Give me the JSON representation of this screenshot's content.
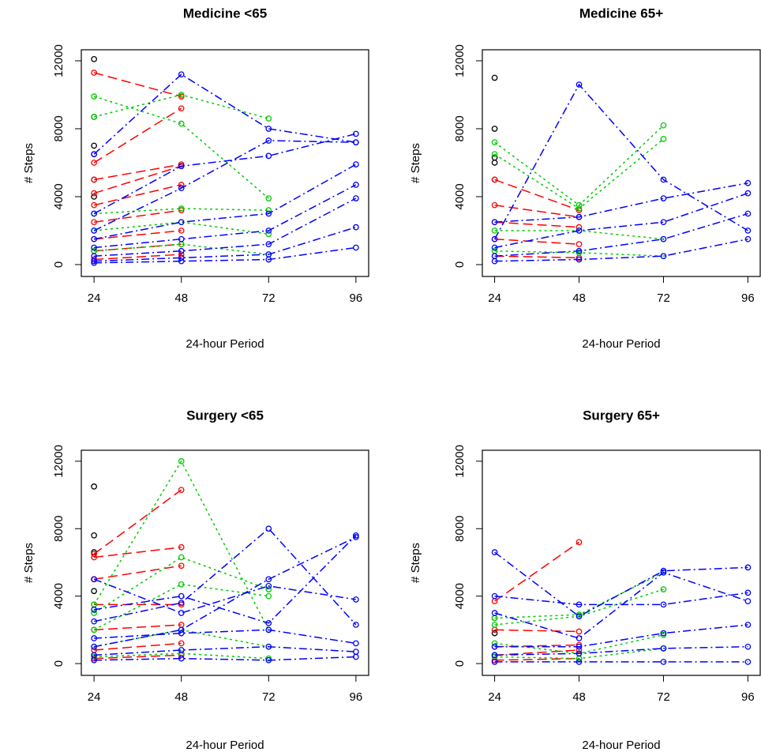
{
  "chart_data": [
    {
      "type": "line",
      "title": "Medicine <65",
      "x_label": "24-hour Period",
      "y_label": "# Steps",
      "xlim": [
        20.5,
        99.5
      ],
      "ylim": [
        -700,
        12650
      ],
      "xticks": [
        24,
        48,
        72,
        96
      ],
      "yticks": [
        0,
        4000,
        8000,
        12000
      ],
      "series": [
        {
          "color": "#000000",
          "x": [
            24
          ],
          "values": [
            12100
          ]
        },
        {
          "color": "#000000",
          "x": [
            24
          ],
          "values": [
            8700
          ]
        },
        {
          "color": "#000000",
          "x": [
            24
          ],
          "values": [
            7000
          ]
        },
        {
          "color": "#000000",
          "x": [
            24
          ],
          "values": [
            6500
          ]
        },
        {
          "color": "#000000",
          "x": [
            24
          ],
          "values": [
            5000
          ]
        },
        {
          "color": "#000000",
          "x": [
            24
          ],
          "values": [
            4000
          ]
        },
        {
          "color": "#ff0000",
          "x": [
            24,
            48
          ],
          "values": [
            11300,
            9900
          ]
        },
        {
          "color": "#ff0000",
          "x": [
            24,
            48
          ],
          "values": [
            6000,
            9200
          ]
        },
        {
          "color": "#ff0000",
          "x": [
            24,
            48
          ],
          "values": [
            5000,
            5900
          ]
        },
        {
          "color": "#ff0000",
          "x": [
            24,
            48
          ],
          "values": [
            4200,
            5800
          ]
        },
        {
          "color": "#ff0000",
          "x": [
            24,
            48
          ],
          "values": [
            3500,
            4700
          ]
        },
        {
          "color": "#ff0000",
          "x": [
            24,
            48
          ],
          "values": [
            2500,
            3200
          ]
        },
        {
          "color": "#ff0000",
          "x": [
            24,
            48
          ],
          "values": [
            1500,
            2000
          ]
        },
        {
          "color": "#ff0000",
          "x": [
            24,
            48
          ],
          "values": [
            800,
            1200
          ]
        },
        {
          "color": "#ff0000",
          "x": [
            24,
            48
          ],
          "values": [
            300,
            600
          ]
        },
        {
          "color": "#00cc00",
          "x": [
            24,
            48,
            72
          ],
          "values": [
            9900,
            8300,
            3900
          ]
        },
        {
          "color": "#00cc00",
          "x": [
            24,
            48,
            72
          ],
          "values": [
            8700,
            10000,
            8600
          ]
        },
        {
          "color": "#00cc00",
          "x": [
            24,
            48,
            72
          ],
          "values": [
            3000,
            3300,
            3200
          ]
        },
        {
          "color": "#00cc00",
          "x": [
            24,
            48,
            72
          ],
          "values": [
            2000,
            2500,
            1800
          ]
        },
        {
          "color": "#00cc00",
          "x": [
            24,
            48,
            72
          ],
          "values": [
            800,
            1200,
            600
          ]
        },
        {
          "color": "#0000ff",
          "x": [
            24,
            48,
            72,
            96
          ],
          "values": [
            6500,
            11200,
            8000,
            7200
          ]
        },
        {
          "color": "#0000ff",
          "x": [
            24,
            48,
            72,
            96
          ],
          "values": [
            3000,
            5800,
            6400,
            7700
          ]
        },
        {
          "color": "#0000ff",
          "x": [
            24,
            48,
            72,
            96
          ],
          "values": [
            2000,
            4500,
            7300,
            7200
          ]
        },
        {
          "color": "#0000ff",
          "x": [
            24,
            48,
            72,
            96
          ],
          "values": [
            1500,
            2500,
            3000,
            5900
          ]
        },
        {
          "color": "#0000ff",
          "x": [
            24,
            48,
            72,
            96
          ],
          "values": [
            1000,
            1500,
            2000,
            4700
          ]
        },
        {
          "color": "#0000ff",
          "x": [
            24,
            48,
            72,
            96
          ],
          "values": [
            500,
            800,
            1200,
            3900
          ]
        },
        {
          "color": "#0000ff",
          "x": [
            24,
            48,
            72,
            96
          ],
          "values": [
            200,
            400,
            600,
            2200
          ]
        },
        {
          "color": "#0000ff",
          "x": [
            24,
            48,
            72,
            96
          ],
          "values": [
            100,
            200,
            300,
            1000
          ]
        }
      ]
    },
    {
      "type": "line",
      "title": "Medicine 65+",
      "x_label": "24-hour Period",
      "y_label": "# Steps",
      "xlim": [
        20.5,
        99.5
      ],
      "ylim": [
        -700,
        12650
      ],
      "xticks": [
        24,
        48,
        72,
        96
      ],
      "yticks": [
        0,
        4000,
        8000,
        12000
      ],
      "series": [
        {
          "color": "#000000",
          "x": [
            24
          ],
          "values": [
            11000
          ]
        },
        {
          "color": "#000000",
          "x": [
            24
          ],
          "values": [
            8000
          ]
        },
        {
          "color": "#000000",
          "x": [
            24
          ],
          "values": [
            6300
          ]
        },
        {
          "color": "#000000",
          "x": [
            24
          ],
          "values": [
            6000
          ]
        },
        {
          "color": "#000000",
          "x": [
            24
          ],
          "values": [
            5000
          ]
        },
        {
          "color": "#ff0000",
          "x": [
            24,
            48
          ],
          "values": [
            5000,
            3200
          ]
        },
        {
          "color": "#ff0000",
          "x": [
            24,
            48
          ],
          "values": [
            3500,
            2800
          ]
        },
        {
          "color": "#ff0000",
          "x": [
            24,
            48
          ],
          "values": [
            2500,
            2200
          ]
        },
        {
          "color": "#ff0000",
          "x": [
            24,
            48
          ],
          "values": [
            1500,
            1200
          ]
        },
        {
          "color": "#ff0000",
          "x": [
            24,
            48
          ],
          "values": [
            500,
            400
          ]
        },
        {
          "color": "#00cc00",
          "x": [
            24,
            48,
            72
          ],
          "values": [
            7200,
            3500,
            8200
          ]
        },
        {
          "color": "#00cc00",
          "x": [
            24,
            48,
            72
          ],
          "values": [
            6500,
            3300,
            7400
          ]
        },
        {
          "color": "#00cc00",
          "x": [
            24,
            48,
            72
          ],
          "values": [
            2000,
            2000,
            1500
          ]
        },
        {
          "color": "#00cc00",
          "x": [
            24,
            48,
            72
          ],
          "values": [
            800,
            700,
            500
          ]
        },
        {
          "color": "#0000ff",
          "x": [
            24,
            48,
            72,
            96
          ],
          "values": [
            1500,
            10600,
            5000,
            2000
          ]
        },
        {
          "color": "#0000ff",
          "x": [
            24,
            48,
            72,
            96
          ],
          "values": [
            2500,
            2800,
            3900,
            4800
          ]
        },
        {
          "color": "#0000ff",
          "x": [
            24,
            48,
            72,
            96
          ],
          "values": [
            1000,
            2000,
            2500,
            4200
          ]
        },
        {
          "color": "#0000ff",
          "x": [
            24,
            48,
            72,
            96
          ],
          "values": [
            500,
            800,
            1500,
            3000
          ]
        },
        {
          "color": "#0000ff",
          "x": [
            24,
            48,
            72,
            96
          ],
          "values": [
            200,
            300,
            500,
            1500
          ]
        }
      ]
    },
    {
      "type": "line",
      "title": "Surgery <65",
      "x_label": "24-hour Period",
      "y_label": "# Steps",
      "xlim": [
        20.5,
        99.5
      ],
      "ylim": [
        -700,
        12650
      ],
      "xticks": [
        24,
        48,
        72,
        96
      ],
      "yticks": [
        0,
        4000,
        8000,
        12000
      ],
      "series": [
        {
          "color": "#000000",
          "x": [
            24
          ],
          "values": [
            10500
          ]
        },
        {
          "color": "#000000",
          "x": [
            24
          ],
          "values": [
            7600
          ]
        },
        {
          "color": "#000000",
          "x": [
            24
          ],
          "values": [
            6600
          ]
        },
        {
          "color": "#000000",
          "x": [
            24
          ],
          "values": [
            5000
          ]
        },
        {
          "color": "#000000",
          "x": [
            24
          ],
          "values": [
            4300
          ]
        },
        {
          "color": "#ff0000",
          "x": [
            24,
            48
          ],
          "values": [
            6500,
            10300
          ]
        },
        {
          "color": "#ff0000",
          "x": [
            24,
            48
          ],
          "values": [
            6300,
            6900
          ]
        },
        {
          "color": "#ff0000",
          "x": [
            24,
            48
          ],
          "values": [
            5000,
            5800
          ]
        },
        {
          "color": "#ff0000",
          "x": [
            24,
            48
          ],
          "values": [
            3500,
            3500
          ]
        },
        {
          "color": "#ff0000",
          "x": [
            24,
            48
          ],
          "values": [
            2000,
            2300
          ]
        },
        {
          "color": "#ff0000",
          "x": [
            24,
            48
          ],
          "values": [
            800,
            1200
          ]
        },
        {
          "color": "#ff0000",
          "x": [
            24,
            48
          ],
          "values": [
            300,
            500
          ]
        },
        {
          "color": "#00cc00",
          "x": [
            24,
            48,
            72
          ],
          "values": [
            3500,
            12000,
            2000
          ]
        },
        {
          "color": "#00cc00",
          "x": [
            24,
            48,
            72
          ],
          "values": [
            3000,
            6300,
            4400
          ]
        },
        {
          "color": "#00cc00",
          "x": [
            24,
            48,
            72
          ],
          "values": [
            2000,
            4700,
            4000
          ]
        },
        {
          "color": "#00cc00",
          "x": [
            24,
            48,
            72
          ],
          "values": [
            1000,
            2000,
            1000
          ]
        },
        {
          "color": "#00cc00",
          "x": [
            24,
            48,
            72
          ],
          "values": [
            400,
            600,
            300
          ]
        },
        {
          "color": "#0000ff",
          "x": [
            24,
            48,
            72,
            96
          ],
          "values": [
            2500,
            3600,
            8000,
            2300
          ]
        },
        {
          "color": "#0000ff",
          "x": [
            24,
            48,
            72,
            96
          ],
          "values": [
            5000,
            3000,
            4600,
            3800
          ]
        },
        {
          "color": "#0000ff",
          "x": [
            24,
            48,
            72,
            96
          ],
          "values": [
            3200,
            4000,
            2400,
            7600
          ]
        },
        {
          "color": "#0000ff",
          "x": [
            24,
            48,
            72,
            96
          ],
          "values": [
            1000,
            2000,
            5000,
            7500
          ]
        },
        {
          "color": "#0000ff",
          "x": [
            24,
            48,
            72,
            96
          ],
          "values": [
            1500,
            1800,
            2000,
            1200
          ]
        },
        {
          "color": "#0000ff",
          "x": [
            24,
            48,
            72,
            96
          ],
          "values": [
            500,
            800,
            1000,
            700
          ]
        },
        {
          "color": "#0000ff",
          "x": [
            24,
            48,
            72,
            96
          ],
          "values": [
            200,
            300,
            200,
            400
          ]
        }
      ]
    },
    {
      "type": "line",
      "title": "Surgery 65+",
      "x_label": "24-hour Period",
      "y_label": "# Steps",
      "xlim": [
        20.5,
        99.5
      ],
      "ylim": [
        -700,
        12650
      ],
      "xticks": [
        24,
        48,
        72,
        96
      ],
      "yticks": [
        0,
        4000,
        8000,
        12000
      ],
      "series": [
        {
          "color": "#000000",
          "x": [
            24
          ],
          "values": [
            2700
          ]
        },
        {
          "color": "#000000",
          "x": [
            24
          ],
          "values": [
            1800
          ]
        },
        {
          "color": "#ff0000",
          "x": [
            24,
            48
          ],
          "values": [
            3700,
            7200
          ]
        },
        {
          "color": "#ff0000",
          "x": [
            24,
            48
          ],
          "values": [
            2000,
            1900
          ]
        },
        {
          "color": "#ff0000",
          "x": [
            24,
            48
          ],
          "values": [
            1000,
            1100
          ]
        },
        {
          "color": "#ff0000",
          "x": [
            24,
            48
          ],
          "values": [
            500,
            800
          ]
        },
        {
          "color": "#ff0000",
          "x": [
            24,
            48
          ],
          "values": [
            200,
            300
          ]
        },
        {
          "color": "#00cc00",
          "x": [
            24,
            48,
            72
          ],
          "values": [
            2700,
            2900,
            5400
          ]
        },
        {
          "color": "#00cc00",
          "x": [
            24,
            48,
            72
          ],
          "values": [
            2300,
            2800,
            4400
          ]
        },
        {
          "color": "#00cc00",
          "x": [
            24,
            48,
            72
          ],
          "values": [
            1200,
            600,
            1700
          ]
        },
        {
          "color": "#00cc00",
          "x": [
            24,
            48,
            72
          ],
          "values": [
            400,
            300,
            900
          ]
        },
        {
          "color": "#0000ff",
          "x": [
            24,
            48,
            72,
            96
          ],
          "values": [
            6600,
            2800,
            5500,
            5700
          ]
        },
        {
          "color": "#0000ff",
          "x": [
            24,
            48,
            72,
            96
          ],
          "values": [
            4000,
            3500,
            3500,
            4200
          ]
        },
        {
          "color": "#0000ff",
          "x": [
            24,
            48,
            72,
            96
          ],
          "values": [
            3000,
            1500,
            5400,
            3700
          ]
        },
        {
          "color": "#0000ff",
          "x": [
            24,
            48,
            72,
            96
          ],
          "values": [
            1000,
            1000,
            1800,
            2300
          ]
        },
        {
          "color": "#0000ff",
          "x": [
            24,
            48,
            72,
            96
          ],
          "values": [
            500,
            600,
            900,
            1000
          ]
        },
        {
          "color": "#0000ff",
          "x": [
            24,
            48,
            72,
            96
          ],
          "values": [
            100,
            100,
            100,
            100
          ]
        }
      ]
    }
  ]
}
